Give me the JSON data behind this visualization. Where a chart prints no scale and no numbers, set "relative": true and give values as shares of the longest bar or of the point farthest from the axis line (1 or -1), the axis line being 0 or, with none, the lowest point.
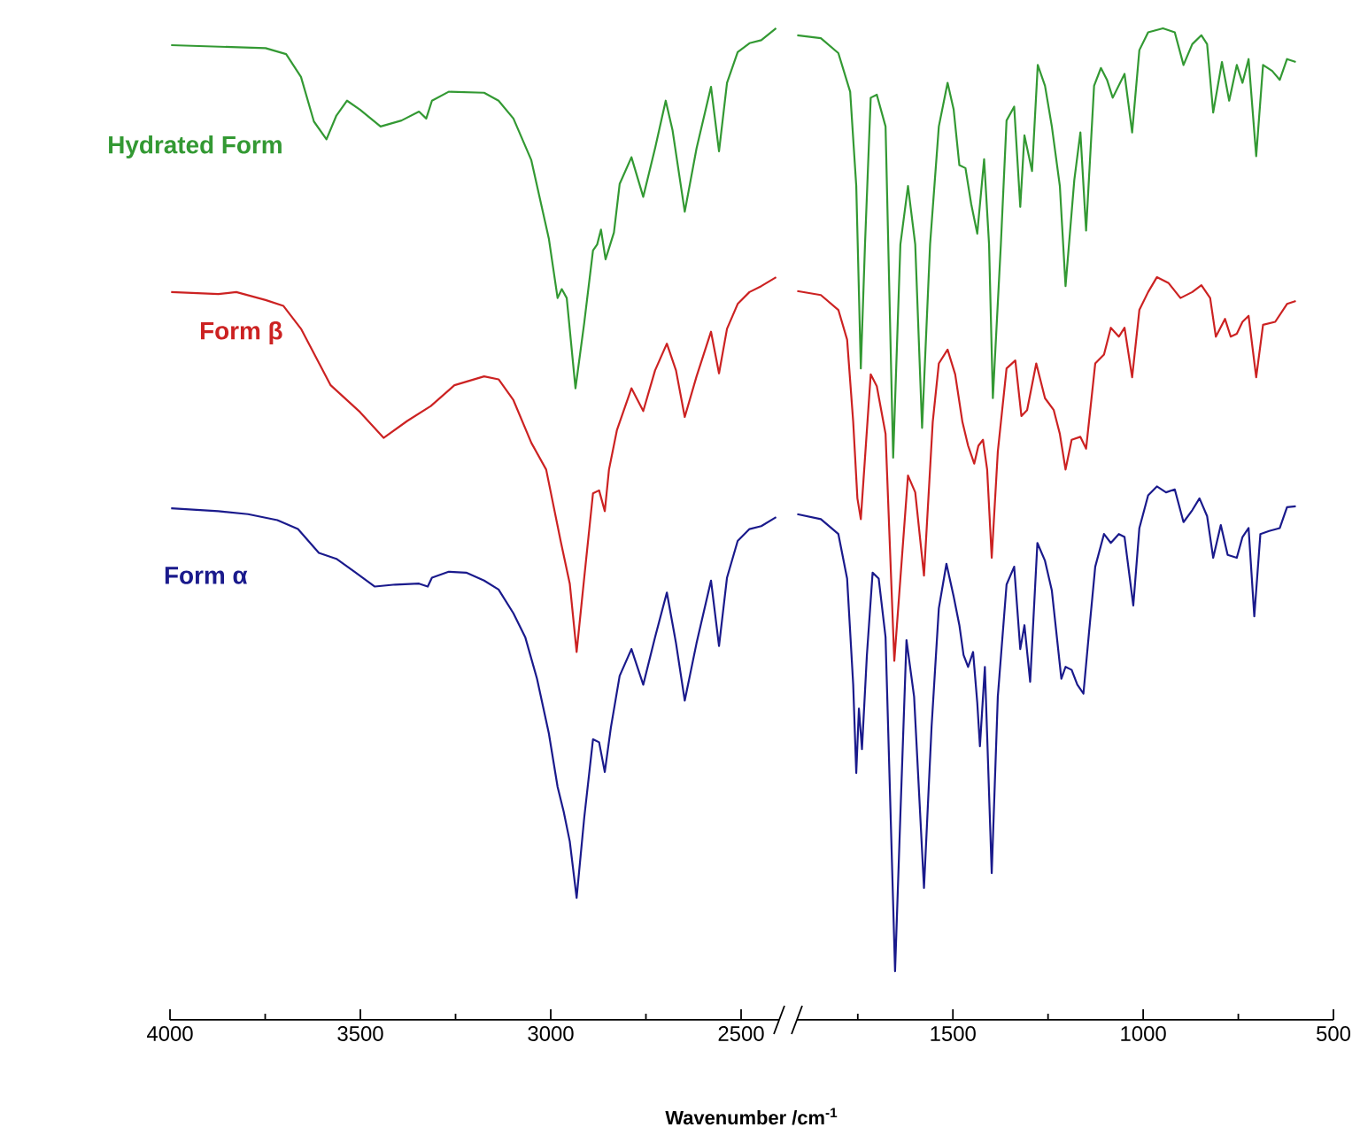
{
  "chart_data": [
    {
      "type": "line",
      "relative": true,
      "xlabel": "Wavenumber /cm$^{-1}$",
      "xlim": [
        4000,
        2400
      ],
      "xticks": [
        4000,
        {
          "value": 3750,
          "label": null
        },
        3500,
        {
          "value": 3250,
          "label": null
        },
        3000,
        {
          "value": 2750,
          "label": null
        },
        2500
      ],
      "series": [
        {
          "name": "Hydrated Form",
          "color": "#339933",
          "x": [
            3997,
            3749,
            3695,
            3656,
            3622,
            3589,
            3563,
            3535,
            3501,
            3447,
            3392,
            3346,
            3327,
            3312,
            3268,
            3175,
            3137,
            3098,
            3051,
            3005,
            2982,
            2971,
            2958,
            2935,
            2912,
            2889,
            2878,
            2868,
            2856,
            2834,
            2819,
            2788,
            2757,
            2726,
            2698,
            2680,
            2648,
            2617,
            2579,
            2558,
            2537,
            2509,
            2478,
            2447,
            2408
          ],
          "values": [
            0.983,
            0.98,
            0.974,
            0.951,
            0.906,
            0.888,
            0.912,
            0.927,
            0.918,
            0.901,
            0.907,
            0.916,
            0.909,
            0.927,
            0.936,
            0.935,
            0.927,
            0.909,
            0.867,
            0.788,
            0.728,
            0.737,
            0.728,
            0.637,
            0.703,
            0.776,
            0.782,
            0.797,
            0.767,
            0.794,
            0.843,
            0.87,
            0.83,
            0.879,
            0.927,
            0.897,
            0.815,
            0.879,
            0.941,
            0.876,
            0.945,
            0.976,
            0.985,
            0.988,
            1.0
          ]
        },
        {
          "name": "Form β",
          "color": "#cc2222",
          "x": [
            3997,
            3873,
            3826,
            3749,
            3702,
            3656,
            3578,
            3501,
            3439,
            3377,
            3315,
            3253,
            3175,
            3137,
            3098,
            3051,
            3012,
            2974,
            2950,
            2932,
            2912,
            2889,
            2873,
            2858,
            2847,
            2826,
            2788,
            2757,
            2726,
            2695,
            2671,
            2648,
            2617,
            2579,
            2558,
            2537,
            2509,
            2478,
            2447,
            2408
          ],
          "values": [
            0.734,
            0.732,
            0.734,
            0.726,
            0.72,
            0.697,
            0.64,
            0.613,
            0.587,
            0.604,
            0.619,
            0.64,
            0.649,
            0.646,
            0.625,
            0.582,
            0.555,
            0.483,
            0.44,
            0.371,
            0.446,
            0.531,
            0.534,
            0.513,
            0.555,
            0.595,
            0.637,
            0.614,
            0.655,
            0.682,
            0.655,
            0.608,
            0.649,
            0.694,
            0.652,
            0.697,
            0.722,
            0.734,
            0.74,
            0.749
          ]
        },
        {
          "name": "Form α",
          "color": "#1a1a8c",
          "x": [
            3997,
            3873,
            3795,
            3718,
            3664,
            3609,
            3563,
            3516,
            3462,
            3408,
            3346,
            3323,
            3312,
            3268,
            3222,
            3175,
            3137,
            3098,
            3067,
            3036,
            3005,
            2982,
            2966,
            2950,
            2932,
            2912,
            2889,
            2873,
            2858,
            2842,
            2819,
            2788,
            2757,
            2726,
            2695,
            2671,
            2648,
            2617,
            2579,
            2558,
            2537,
            2509,
            2478,
            2447,
            2408
          ],
          "values": [
            0.516,
            0.513,
            0.51,
            0.504,
            0.495,
            0.471,
            0.465,
            0.452,
            0.437,
            0.439,
            0.44,
            0.437,
            0.446,
            0.452,
            0.451,
            0.443,
            0.434,
            0.41,
            0.386,
            0.344,
            0.289,
            0.235,
            0.21,
            0.18,
            0.123,
            0.204,
            0.283,
            0.28,
            0.25,
            0.295,
            0.347,
            0.374,
            0.338,
            0.386,
            0.431,
            0.38,
            0.322,
            0.38,
            0.443,
            0.377,
            0.446,
            0.483,
            0.495,
            0.498,
            0.507
          ]
        }
      ]
    },
    {
      "type": "line",
      "relative": true,
      "xlim": [
        1910,
        500
      ],
      "xticks": [
        {
          "value": 1750,
          "label": null
        },
        1500,
        {
          "value": 1250,
          "label": null
        },
        1000,
        {
          "value": 750,
          "label": null
        },
        500
      ],
      "series": [
        {
          "color": "#339933",
          "x": [
            1909,
            1847,
            1801,
            1770,
            1754,
            1742,
            1731,
            1716,
            1700,
            1677,
            1657,
            1638,
            1618,
            1599,
            1581,
            1560,
            1537,
            1514,
            1498,
            1483,
            1467,
            1452,
            1436,
            1418,
            1405,
            1395,
            1374,
            1359,
            1339,
            1323,
            1312,
            1292,
            1277,
            1258,
            1240,
            1219,
            1204,
            1181,
            1165,
            1150,
            1129,
            1111,
            1095,
            1080,
            1049,
            1029,
            1010,
            987,
            948,
            917,
            894,
            871,
            847,
            832,
            816,
            793,
            774,
            754,
            739,
            723,
            703,
            685,
            661,
            641,
            622,
            599
          ],
          "values": [
            0.993,
            0.99,
            0.975,
            0.936,
            0.841,
            0.657,
            0.782,
            0.93,
            0.933,
            0.901,
            0.567,
            0.782,
            0.841,
            0.782,
            0.597,
            0.782,
            0.901,
            0.945,
            0.918,
            0.862,
            0.859,
            0.823,
            0.793,
            0.868,
            0.782,
            0.627,
            0.782,
            0.907,
            0.921,
            0.82,
            0.892,
            0.856,
            0.963,
            0.942,
            0.901,
            0.841,
            0.74,
            0.847,
            0.895,
            0.796,
            0.942,
            0.96,
            0.948,
            0.93,
            0.954,
            0.895,
            0.978,
            0.996,
            1.0,
            0.996,
            0.963,
            0.984,
            0.993,
            0.984,
            0.915,
            0.966,
            0.927,
            0.963,
            0.945,
            0.969,
            0.871,
            0.963,
            0.957,
            0.948,
            0.969,
            0.966
          ]
        },
        {
          "color": "#cc2222",
          "x": [
            1909,
            1847,
            1801,
            1778,
            1762,
            1751,
            1742,
            1716,
            1700,
            1677,
            1654,
            1618,
            1599,
            1576,
            1553,
            1537,
            1514,
            1494,
            1475,
            1460,
            1444,
            1433,
            1421,
            1410,
            1398,
            1382,
            1359,
            1336,
            1320,
            1305,
            1281,
            1258,
            1235,
            1219,
            1204,
            1188,
            1165,
            1150,
            1126,
            1103,
            1085,
            1064,
            1049,
            1029,
            1010,
            987,
            964,
            933,
            902,
            871,
            847,
            824,
            809,
            785,
            770,
            754,
            739,
            723,
            703,
            685,
            653,
            622,
            599
          ],
          "values": [
            0.735,
            0.731,
            0.716,
            0.686,
            0.603,
            0.526,
            0.505,
            0.651,
            0.639,
            0.591,
            0.362,
            0.549,
            0.532,
            0.448,
            0.603,
            0.662,
            0.676,
            0.651,
            0.603,
            0.579,
            0.561,
            0.579,
            0.585,
            0.555,
            0.466,
            0.573,
            0.657,
            0.665,
            0.609,
            0.615,
            0.662,
            0.627,
            0.615,
            0.591,
            0.555,
            0.585,
            0.588,
            0.576,
            0.662,
            0.671,
            0.698,
            0.689,
            0.698,
            0.648,
            0.716,
            0.734,
            0.749,
            0.743,
            0.728,
            0.734,
            0.741,
            0.728,
            0.689,
            0.707,
            0.689,
            0.692,
            0.704,
            0.71,
            0.648,
            0.701,
            0.704,
            0.722,
            0.725
          ]
        },
        {
          "color": "#1a1a8c",
          "x": [
            1909,
            1847,
            1801,
            1778,
            1762,
            1754,
            1747,
            1739,
            1726,
            1711,
            1695,
            1677,
            1652,
            1638,
            1622,
            1602,
            1576,
            1556,
            1537,
            1517,
            1498,
            1483,
            1472,
            1460,
            1447,
            1436,
            1429,
            1416,
            1398,
            1382,
            1359,
            1339,
            1323,
            1312,
            1297,
            1278,
            1258,
            1240,
            1215,
            1204,
            1188,
            1173,
            1157,
            1142,
            1126,
            1103,
            1085,
            1064,
            1049,
            1026,
            1010,
            987,
            964,
            940,
            917,
            894,
            871,
            852,
            832,
            816,
            796,
            778,
            754,
            739,
            723,
            708,
            692,
            669,
            641,
            622,
            599
          ],
          "values": [
            0.51,
            0.505,
            0.49,
            0.445,
            0.338,
            0.249,
            0.314,
            0.273,
            0.368,
            0.451,
            0.445,
            0.386,
            0.049,
            0.207,
            0.383,
            0.326,
            0.133,
            0.296,
            0.415,
            0.46,
            0.427,
            0.398,
            0.368,
            0.356,
            0.371,
            0.32,
            0.276,
            0.356,
            0.148,
            0.326,
            0.439,
            0.457,
            0.374,
            0.398,
            0.341,
            0.481,
            0.463,
            0.433,
            0.344,
            0.356,
            0.353,
            0.338,
            0.329,
            0.392,
            0.457,
            0.49,
            0.481,
            0.49,
            0.487,
            0.418,
            0.496,
            0.529,
            0.538,
            0.532,
            0.535,
            0.502,
            0.514,
            0.526,
            0.508,
            0.466,
            0.499,
            0.469,
            0.466,
            0.487,
            0.496,
            0.407,
            0.49,
            0.493,
            0.496,
            0.517,
            0.518
          ]
        }
      ]
    }
  ]
}
